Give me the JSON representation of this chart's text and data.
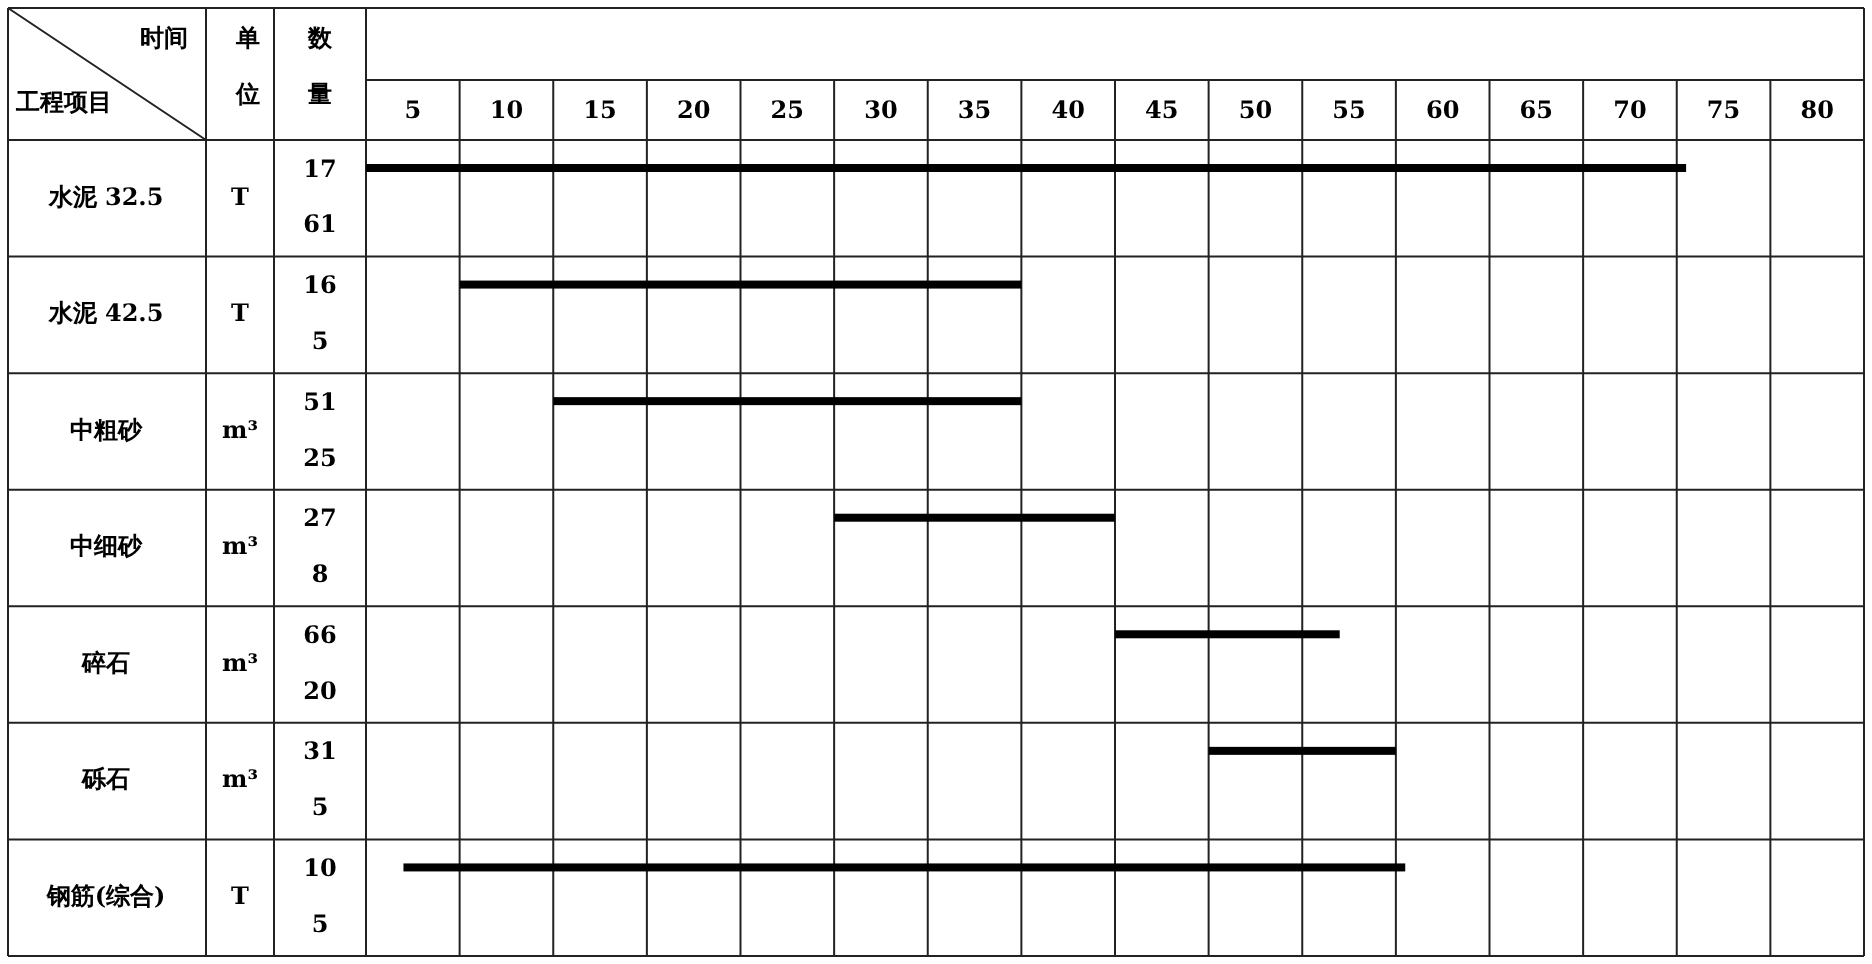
{
  "chart_data": {
    "type": "bar",
    "orientation": "horizontal",
    "xlabel": "时间",
    "ylabel": "工程项目",
    "categories": [
      "水泥 32.5",
      "水泥 42.5",
      "中粗砂",
      "中细砂",
      "碎石",
      "砾石",
      "钢筋(综合)"
    ],
    "base": [
      2.5,
      7.5,
      12.5,
      27.5,
      42.5,
      47.5,
      4.5
    ],
    "values": [
      70.5,
      30,
      25,
      15,
      12,
      10,
      53.5
    ],
    "color": "#000000",
    "xlim": [
      2.5,
      82.5
    ],
    "xticks": [
      5,
      10,
      15,
      20,
      25,
      30,
      35,
      40,
      45,
      50,
      55,
      60,
      65,
      70,
      75,
      80
    ],
    "grid": true,
    "annotations": [
      "单位",
      "数量",
      "T",
      "17",
      "61",
      "T",
      "16",
      "5",
      "m³",
      "51",
      "25",
      "m³",
      "27",
      "8",
      "m³",
      "66",
      "20",
      "m³",
      "31",
      "5",
      "T",
      "10",
      "5"
    ]
  }
}
